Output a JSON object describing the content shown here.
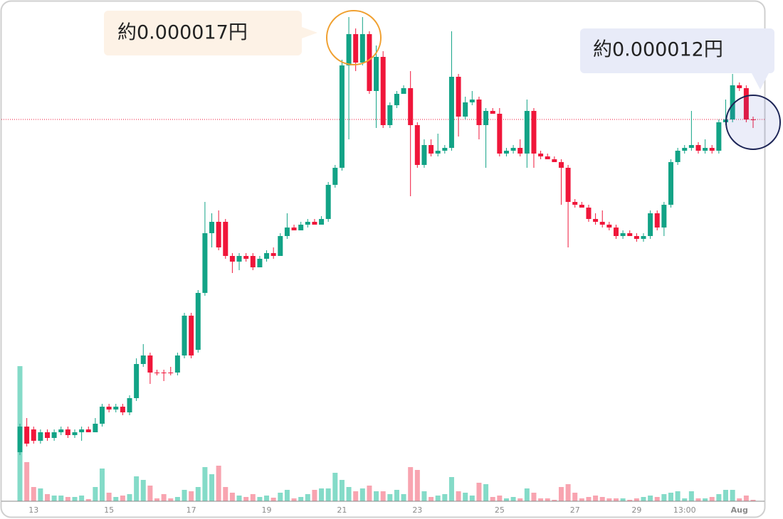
{
  "chart_data": {
    "type": "candlestick",
    "annotations": [
      "約0.000017円",
      "約0.000012円"
    ],
    "categories": [
      null,
      null,
      "13",
      null,
      null,
      null,
      null,
      null,
      null,
      null,
      null,
      null,
      null,
      "15",
      null,
      null,
      null,
      null,
      null,
      null,
      null,
      null,
      null,
      null,
      null,
      "17",
      null,
      null,
      null,
      null,
      null,
      null,
      null,
      null,
      null,
      null,
      "19",
      null,
      null,
      null,
      null,
      null,
      null,
      null,
      null,
      null,
      null,
      "21",
      null,
      null,
      null,
      null,
      null,
      null,
      null,
      null,
      null,
      null,
      "23",
      null,
      null,
      null,
      null,
      null,
      null,
      null,
      null,
      null,
      null,
      null,
      "25",
      null,
      null,
      null,
      null,
      null,
      null,
      null,
      null,
      null,
      null,
      "27",
      null,
      null,
      null,
      null,
      null,
      null,
      null,
      null,
      "29",
      null,
      null,
      null,
      null,
      null,
      null,
      "13:00",
      null,
      null,
      null,
      null,
      null,
      null,
      null,
      "Aug",
      null,
      null
    ],
    "open": [
      1.6e-06,
      2.5e-06,
      2.4e-06,
      2e-06,
      2.3e-06,
      2.1e-06,
      2.3e-06,
      2.4e-06,
      2.2e-06,
      2.3e-06,
      2.4e-06,
      2.3e-06,
      2.6e-06,
      3.2e-06,
      3.1e-06,
      3.2e-06,
      3e-06,
      3.5e-06,
      4.7e-06,
      5e-06,
      4.4e-06,
      4.4e-06,
      4.4e-06,
      4.4e-06,
      5e-06,
      6.4e-06,
      5.2e-06,
      7.2e-06,
      9.3e-06,
      9.7e-06,
      9.7e-06,
      8.5e-06,
      8.3e-06,
      8.5e-06,
      8.5e-06,
      8.1e-06,
      8.4e-06,
      8.6e-06,
      8.5e-06,
      9.2e-06,
      9.5e-06,
      9.4e-06,
      9.6e-06,
      9.7e-06,
      9.6e-06,
      9.8e-06,
      1.1e-05,
      1.16e-05,
      1.52e-05,
      1.63e-05,
      1.53e-05,
      1.63e-05,
      1.43e-05,
      1.55e-05,
      1.31e-05,
      1.38e-05,
      1.42e-05,
      1.44e-05,
      1.31e-05,
      1.17e-05,
      1.24e-05,
      1.21e-05,
      1.22e-05,
      1.23e-05,
      1.48e-05,
      1.34e-05,
      1.39e-05,
      1.4e-05,
      1.31e-05,
      1.36e-05,
      1.35e-05,
      1.21e-05,
      1.22e-05,
      1.23e-05,
      1.21e-05,
      1.36e-05,
      1.21e-05,
      1.2e-05,
      1.19e-05,
      1.18e-05,
      1.16e-05,
      1.04e-05,
      1.03e-05,
      1.02e-05,
      9.8e-06,
      9.7e-06,
      9.6e-06,
      9.5e-06,
      9.2e-06,
      9.3e-06,
      9.2e-06,
      9.1e-06,
      9.2e-06,
      1e-05,
      9.5e-06,
      1.03e-05,
      1.18e-05,
      1.22e-05,
      1.23e-05,
      1.24e-05,
      1.22e-05,
      1.23e-05,
      1.22e-05,
      1.32e-05,
      1.33e-05,
      1.45e-05,
      1.44e-05,
      1.33e-05
    ],
    "high": [
      2.6e-06,
      2.8e-06,
      2.5e-06,
      2.4e-06,
      2.4e-06,
      2.4e-06,
      2.5e-06,
      2.5e-06,
      2.4e-06,
      2.5e-06,
      2.5e-06,
      2.8e-06,
      3.3e-06,
      3.3e-06,
      3.3e-06,
      3.3e-06,
      3.6e-06,
      4.9e-06,
      5.4e-06,
      5.1e-06,
      4.5e-06,
      4.5e-06,
      4.6e-06,
      5.1e-06,
      6.5e-06,
      6.5e-06,
      7.3e-06,
      1.04e-05,
      1e-05,
      1.01e-05,
      9.8e-06,
      8.6e-06,
      8.6e-06,
      8.6e-06,
      8.6e-06,
      8.5e-06,
      8.7e-06,
      8.8e-06,
      9.3e-06,
      1e-05,
      9.6e-06,
      9.7e-06,
      9.8e-06,
      9.8e-06,
      9.9e-06,
      1.11e-05,
      1.17e-05,
      1.54e-05,
      1.69e-05,
      1.65e-05,
      1.69e-05,
      1.64e-05,
      1.59e-05,
      1.57e-05,
      1.39e-05,
      1.43e-05,
      1.45e-05,
      1.5e-05,
      1.32e-05,
      1.26e-05,
      1.26e-05,
      1.28e-05,
      1.24e-05,
      1.64e-05,
      1.49e-05,
      1.41e-05,
      1.43e-05,
      1.41e-05,
      1.37e-05,
      1.37e-05,
      1.37e-05,
      1.23e-05,
      1.24e-05,
      1.26e-05,
      1.4e-05,
      1.37e-05,
      1.22e-05,
      1.21e-05,
      1.2e-05,
      1.19e-05,
      1.17e-05,
      1.05e-05,
      1.04e-05,
      1.03e-05,
      1e-05,
      1.01e-05,
      9.7e-06,
      9.6e-06,
      9.4e-06,
      9.4e-06,
      9.3e-06,
      9.3e-06,
      1.01e-05,
      1.01e-05,
      1.04e-05,
      1.19e-05,
      1.23e-05,
      1.24e-05,
      1.36e-05,
      1.25e-05,
      1.26e-05,
      1.24e-05,
      1.33e-05,
      1.4e-05,
      1.49e-05,
      1.46e-05,
      1.45e-05,
      1.34e-05
    ],
    "low": [
      1.5e-06,
      1.8e-06,
      1.9e-06,
      1.9e-06,
      2e-06,
      2e-06,
      2.2e-06,
      2.1e-06,
      2.1e-06,
      2e-06,
      2.3e-06,
      2.3e-06,
      2.5e-06,
      3e-06,
      3e-06,
      2.9e-06,
      2.9e-06,
      3.4e-06,
      4.6e-06,
      4e-06,
      4.3e-06,
      4.1e-06,
      4.3e-06,
      4.3e-06,
      4.9e-06,
      4.9e-06,
      5.1e-06,
      7.1e-06,
      8.8e-06,
      8.7e-06,
      8.4e-06,
      7.9e-06,
      8e-06,
      8.3e-06,
      8e-06,
      8.1e-06,
      8.3e-06,
      8.4e-06,
      8.5e-06,
      9.1e-06,
      9.4e-06,
      9.4e-06,
      9.5e-06,
      9.6e-06,
      9.6e-06,
      9.7e-06,
      1.09e-05,
      1.15e-05,
      1.26e-05,
      1.5e-05,
      1.52e-05,
      1.42e-05,
      1.3e-05,
      1.3e-05,
      1.3e-05,
      1.37e-05,
      1.42e-05,
      1.06e-05,
      1.16e-05,
      1.16e-05,
      1.2e-05,
      1.2e-05,
      1.21e-05,
      1.22e-05,
      1.27e-05,
      1.33e-05,
      1.38e-05,
      1.26e-05,
      1.16e-05,
      1.35e-05,
      1.2e-05,
      1.2e-05,
      1.21e-05,
      1.2e-05,
      1.16e-05,
      1.16e-05,
      1.19e-05,
      1.19e-05,
      1.18e-05,
      1.03e-05,
      8.8e-06,
      1.02e-05,
      1.02e-05,
      9.7e-06,
      9.6e-06,
      9.5e-06,
      9.4e-06,
      9.1e-06,
      9.1e-06,
      9.2e-06,
      9e-06,
      9e-06,
      9.1e-06,
      9.4e-06,
      9.2e-06,
      1.02e-05,
      1.17e-05,
      1.21e-05,
      1.22e-05,
      1.21e-05,
      1.21e-05,
      1.21e-05,
      1.21e-05,
      1.31e-05,
      1.32e-05,
      1.43e-05,
      1.32e-05,
      1.3e-05
    ],
    "close": [
      2.5e-06,
      1.9e-06,
      2e-06,
      2.3e-06,
      2.1e-06,
      2.3e-06,
      2.4e-06,
      2.2e-06,
      2.3e-06,
      2.4e-06,
      2.3e-06,
      2.6e-06,
      3.2e-06,
      3.1e-06,
      3.2e-06,
      3e-06,
      3.5e-06,
      4.7e-06,
      5e-06,
      4.4e-06,
      4.4e-06,
      4.4e-06,
      4.4e-06,
      5e-06,
      6.4e-06,
      5e-06,
      7.2e-06,
      9.3e-06,
      9.7e-06,
      8.8e-06,
      8.5e-06,
      8.3e-06,
      8.5e-06,
      8.4e-06,
      8.1e-06,
      8.4e-06,
      8.6e-06,
      8.5e-06,
      9.2e-06,
      9.5e-06,
      9.4e-06,
      9.6e-06,
      9.7e-06,
      9.6e-06,
      9.8e-06,
      1.1e-05,
      1.16e-05,
      1.52e-05,
      1.63e-05,
      1.53e-05,
      1.63e-05,
      1.43e-05,
      1.55e-05,
      1.31e-05,
      1.38e-05,
      1.42e-05,
      1.44e-05,
      1.31e-05,
      1.17e-05,
      1.24e-05,
      1.21e-05,
      1.22e-05,
      1.23e-05,
      1.48e-05,
      1.34e-05,
      1.39e-05,
      1.4e-05,
      1.31e-05,
      1.36e-05,
      1.35e-05,
      1.21e-05,
      1.22e-05,
      1.23e-05,
      1.21e-05,
      1.36e-05,
      1.21e-05,
      1.2e-05,
      1.19e-05,
      1.18e-05,
      1.16e-05,
      1.04e-05,
      1.03e-05,
      1.02e-05,
      9.8e-06,
      9.7e-06,
      9.6e-06,
      9.5e-06,
      9.2e-06,
      9.3e-06,
      9.2e-06,
      9.1e-06,
      9.2e-06,
      1e-05,
      9.5e-06,
      1.03e-05,
      1.18e-05,
      1.22e-05,
      1.23e-05,
      1.24e-05,
      1.22e-05,
      1.23e-05,
      1.22e-05,
      1.32e-05,
      1.33e-05,
      1.45e-05,
      1.44e-05,
      1.33e-05,
      1.33e-05
    ],
    "volume": [
      190,
      55,
      20,
      18,
      10,
      8,
      8,
      6,
      6,
      8,
      3,
      20,
      46,
      12,
      6,
      8,
      10,
      35,
      30,
      22,
      4,
      10,
      4,
      6,
      16,
      14,
      20,
      48,
      38,
      50,
      20,
      12,
      8,
      6,
      10,
      6,
      8,
      5,
      12,
      16,
      4,
      6,
      10,
      16,
      18,
      18,
      40,
      30,
      20,
      14,
      18,
      22,
      14,
      14,
      10,
      16,
      10,
      48,
      44,
      14,
      6,
      8,
      10,
      34,
      14,
      12,
      8,
      26,
      24,
      6,
      8,
      4,
      6,
      4,
      18,
      12,
      4,
      4,
      2,
      20,
      24,
      12,
      4,
      6,
      8,
      6,
      4,
      4,
      4,
      2,
      4,
      6,
      8,
      6,
      10,
      12,
      14,
      4,
      14,
      4,
      4,
      6,
      10,
      16,
      16,
      4,
      8,
      2
    ],
    "up_color": "#12a386",
    "down_color": "#f0163a",
    "up_volume_color": "#84dbc8",
    "down_volume_color": "#f8a4b0",
    "ylim": [
      0,
      1.7e-05
    ]
  }
}
